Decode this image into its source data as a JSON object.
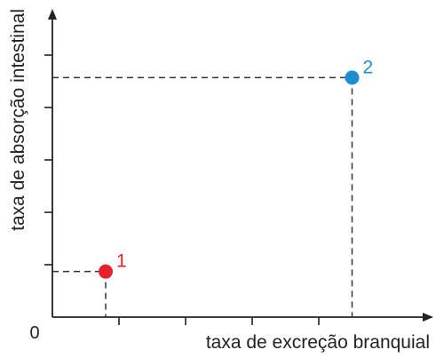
{
  "chart_data": {
    "type": "scatter",
    "xlabel": "taxa de excreção branquial",
    "ylabel": "taxa de absorção intestinal",
    "origin_label": "0",
    "xlim": [
      0,
      5
    ],
    "ylim": [
      0,
      5
    ],
    "x_ticks": [
      1,
      2,
      3,
      4
    ],
    "y_ticks": [
      1,
      2,
      3,
      4,
      5
    ],
    "grid": false,
    "reference_lines": "dashed",
    "points": [
      {
        "label": "1",
        "x": 0.8,
        "y": 0.87,
        "color": "#e8222b"
      },
      {
        "label": "2",
        "x": 4.5,
        "y": 4.57,
        "color": "#1b8fd0"
      }
    ],
    "colors": {
      "axis": "#222222",
      "dashes": "#333333",
      "text": "#222222"
    }
  }
}
